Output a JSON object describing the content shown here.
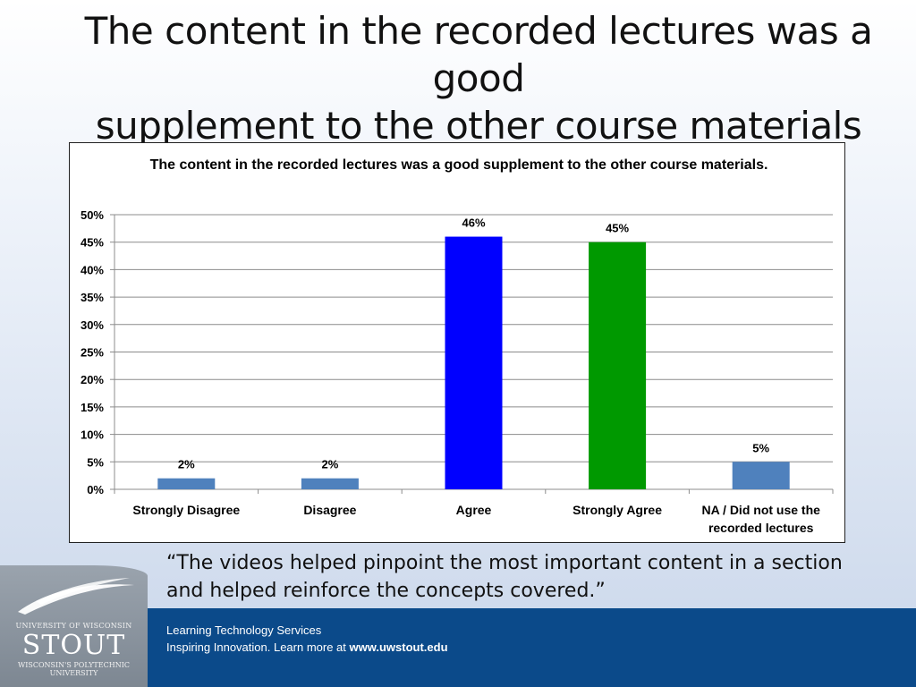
{
  "slide": {
    "title_line1": "The content in the recorded lectures was a good",
    "title_line2": "supplement to the other course materials",
    "quote": "“The videos helped pinpoint the most important content in a section\n and helped reinforce the concepts covered.”"
  },
  "footer": {
    "line1": "Learning Technology Services",
    "line2_prefix": "Inspiring Innovation.  Learn more at ",
    "line2_link": "www.uwstout.edu"
  },
  "logo": {
    "line1": "UNIVERSITY OF WISCONSIN",
    "line2": "STOUT",
    "line3": "WISCONSIN'S POLYTECHNIC UNIVERSITY",
    "icon": "swoosh-icon"
  },
  "chart_data": {
    "type": "bar",
    "title": "The content in the recorded lectures was a good supplement to the other course materials.",
    "categories": [
      "Strongly Disagree",
      "Disagree",
      "Agree",
      "Strongly Agree",
      "NA / Did not use the recorded lectures"
    ],
    "values": [
      2,
      2,
      46,
      45,
      5
    ],
    "data_labels": [
      "2%",
      "2%",
      "46%",
      "45%",
      "5%"
    ],
    "colors": [
      "#4f81bd",
      "#4f81bd",
      "#0000ff",
      "#009900",
      "#4f81bd"
    ],
    "y_ticks": [
      "0%",
      "5%",
      "10%",
      "15%",
      "20%",
      "25%",
      "30%",
      "35%",
      "40%",
      "45%",
      "50%"
    ],
    "ylim": [
      0,
      50
    ],
    "grid": true,
    "legend": "none",
    "xlabel": "",
    "ylabel": ""
  }
}
